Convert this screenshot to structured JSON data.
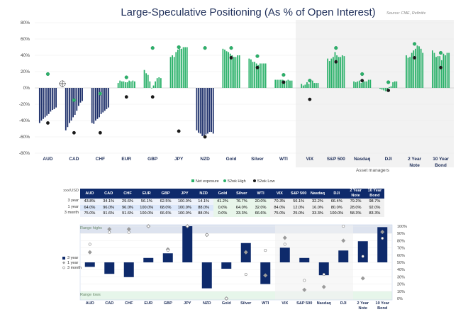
{
  "chart_data": [
    {
      "type": "bar",
      "title": "Large-Speculative Positioning (As % of Open Interest)",
      "source": "Source: CME, Refinitiv",
      "categories": [
        "AUD",
        "CAD",
        "CHF",
        "EUR",
        "GBP",
        "JPY",
        "NZD",
        "Gold",
        "Silver",
        "WTI",
        "VIX",
        "S&P 500",
        "Nasdaq",
        "DJI",
        "2 Year Note",
        "10 Year Bond"
      ],
      "group_label": "Asset managers",
      "ylim": [
        -80,
        80
      ],
      "yticks": [
        "80%",
        "60%",
        "40%",
        "20%",
        "0%",
        "-20%",
        "-40%",
        "-60%",
        "-80%"
      ],
      "legend": [
        "Net exposure",
        "52wk High",
        "52wk Low"
      ],
      "series": [
        {
          "name": "Net exposure",
          "values": [
            [
              -43,
              -40,
              -38,
              -36,
              -34,
              -32,
              -29,
              -27,
              -26,
              -24
            ],
            [
              -52,
              -48,
              -43,
              -40,
              -36,
              -33,
              -28,
              -22,
              -18,
              -16
            ],
            [
              -43,
              -44,
              -40,
              -38,
              -36,
              -32,
              -30,
              -28,
              -26,
              -24
            ],
            [
              6,
              9,
              8,
              8,
              7,
              7,
              9,
              8,
              9,
              8
            ],
            [
              22,
              18,
              16,
              8,
              0,
              3,
              8,
              12,
              13,
              12
            ],
            [
              38,
              40,
              38,
              44,
              47,
              48,
              48,
              50,
              50,
              50
            ],
            [
              -52,
              -55,
              -56,
              -59,
              -60,
              -57,
              -56,
              -54,
              -54,
              -56
            ],
            [
              48,
              47,
              45,
              44,
              42,
              40,
              38,
              38,
              40,
              40
            ],
            [
              36,
              35,
              32,
              32,
              30,
              28,
              30,
              30,
              30,
              30
            ],
            [
              10,
              10,
              10,
              10,
              10,
              9,
              9,
              10,
              9,
              9
            ],
            [
              5,
              3,
              4,
              7,
              5,
              8,
              9,
              6,
              6,
              6
            ],
            [
              36,
              33,
              36,
              38,
              44,
              40,
              38,
              38,
              40,
              39
            ],
            [
              8,
              7,
              8,
              9,
              6,
              8,
              8,
              8,
              10,
              10
            ],
            [
              -1,
              -2,
              -3,
              -4,
              -2,
              1,
              2,
              7,
              8,
              8
            ],
            [
              40,
              37,
              38,
              43,
              46,
              48,
              52,
              51,
              48,
              43
            ],
            [
              46,
              43,
              38,
              39,
              39,
              34,
              42,
              40,
              43,
              43
            ]
          ]
        },
        {
          "name": "52wk High",
          "values": [
            17,
            -15,
            -7,
            13,
            49,
            50,
            49,
            49,
            39,
            16,
            9,
            49,
            17,
            7,
            54,
            43
          ]
        },
        {
          "name": "52wk Low",
          "values": [
            -43,
            -55,
            -55,
            -11,
            -11,
            -53,
            -60,
            37,
            25,
            7,
            -14,
            32,
            9,
            -3,
            37,
            25
          ]
        }
      ]
    },
    {
      "type": "table",
      "corner_label": "xxx/USD",
      "columns": [
        "AUD",
        "CAD",
        "CHF",
        "EUR",
        "GBP",
        "JPY",
        "NZD",
        "Gold",
        "Silver",
        "WTI",
        "VIX",
        "S&P 500",
        "Nasdaq",
        "DJI",
        "2 Year Note",
        "10 Year Bond"
      ],
      "rows": [
        {
          "label": "3 year",
          "values": [
            "43.8%",
            "34.1%",
            "29.6%",
            "56.1%",
            "62.5%",
            "100.0%",
            "14.1%",
            "41.2%",
            "76.7%",
            "20.0%",
            "70.3%",
            "56.1%",
            "32.2%",
            "66.4%",
            "79.2%",
            "98.7%"
          ]
        },
        {
          "label": "1 year",
          "values": [
            "64.0%",
            "96.0%",
            "96.0%",
            "100.0%",
            "68.0%",
            "100.0%",
            "88.0%",
            "0.0%",
            "64.0%",
            "32.0%",
            "84.0%",
            "12.0%",
            "16.0%",
            "80.0%",
            "28.0%",
            "92.0%"
          ]
        },
        {
          "label": "3 month",
          "values": [
            "75.0%",
            "91.6%",
            "91.6%",
            "100.0%",
            "66.6%",
            "100.0%",
            "88.0%",
            "0.0%",
            "33.3%",
            "66.6%",
            "75.0%",
            "25.0%",
            "33.3%",
            "100.0%",
            "58.3%",
            "83.3%"
          ]
        }
      ]
    },
    {
      "type": "scatter",
      "title": "",
      "top_label": "Range highs",
      "bottom_label": "Range lows",
      "categories": [
        "AUD",
        "CAD",
        "CHF",
        "EUR",
        "GBP",
        "JPY",
        "NZD",
        "Gold",
        "Silver",
        "WTI",
        "VIX",
        "S&P 500",
        "Nasdaq",
        "DJI",
        "2 Year Note",
        "10 Year Bond"
      ],
      "ylim": [
        0,
        100
      ],
      "yticks": [
        "100%",
        "90%",
        "80%",
        "70%",
        "60%",
        "50%",
        "40%",
        "30%",
        "20%",
        "10%",
        "0%"
      ],
      "legend": [
        "3 year",
        "1 year",
        "3 month"
      ],
      "series": [
        {
          "name": "3 year",
          "values": [
            43.8,
            34.1,
            29.6,
            56.1,
            62.5,
            100.0,
            14.1,
            41.2,
            76.7,
            20.0,
            70.3,
            56.1,
            32.2,
            66.4,
            79.2,
            98.7
          ]
        },
        {
          "name": "1 year",
          "values": [
            64.0,
            96.0,
            96.0,
            100.0,
            68.0,
            100.0,
            88.0,
            0.0,
            64.0,
            32.0,
            84.0,
            12.0,
            16.0,
            80.0,
            28.0,
            92.0
          ]
        },
        {
          "name": "3 month",
          "values": [
            75.0,
            91.6,
            91.6,
            100.0,
            66.6,
            100.0,
            88.0,
            0.0,
            33.3,
            66.6,
            75.0,
            25.0,
            33.3,
            100.0,
            58.3,
            83.3
          ]
        }
      ]
    }
  ]
}
